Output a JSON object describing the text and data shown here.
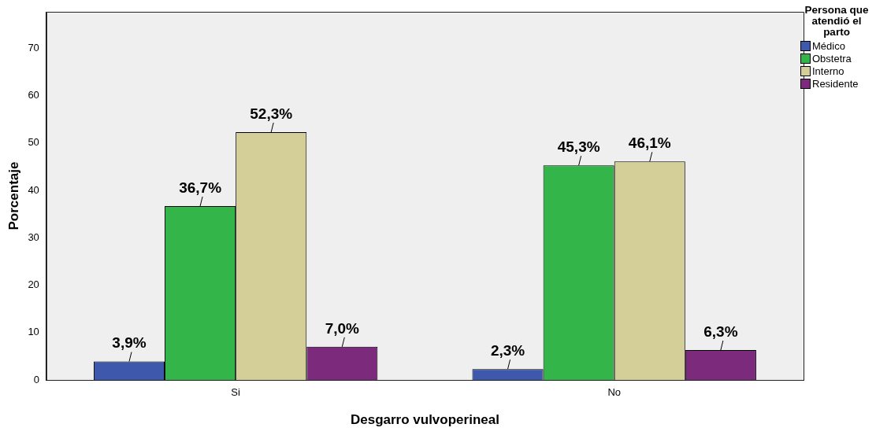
{
  "chart_data": {
    "type": "bar",
    "xlabel": "Desgarro vulvoperineal",
    "ylabel": "Porcentaje",
    "legend_title": "Persona que atendió el parto",
    "legend": "top right",
    "grid": false,
    "categories": [
      "Si",
      "No"
    ],
    "ylim": [
      0,
      77.7
    ],
    "yticks": [
      0,
      10,
      20,
      30,
      40,
      50,
      60,
      70
    ],
    "series": [
      {
        "name": "Médico",
        "color": "#3e58ac",
        "values": [
          3.9,
          2.3
        ],
        "value_labels": [
          "3,9%",
          "2,3%"
        ]
      },
      {
        "name": "Obstetra",
        "color": "#33b54a",
        "values": [
          36.7,
          45.3
        ],
        "value_labels": [
          "36,7%",
          "45,3%"
        ]
      },
      {
        "name": "Interno",
        "color": "#d4ce98",
        "values": [
          52.3,
          46.1
        ],
        "value_labels": [
          "52,3%",
          "46,1%"
        ]
      },
      {
        "name": "Residente",
        "color": "#7b2a7c",
        "values": [
          7.0,
          6.3
        ],
        "value_labels": [
          "7,0%",
          "6,3%"
        ]
      }
    ]
  }
}
